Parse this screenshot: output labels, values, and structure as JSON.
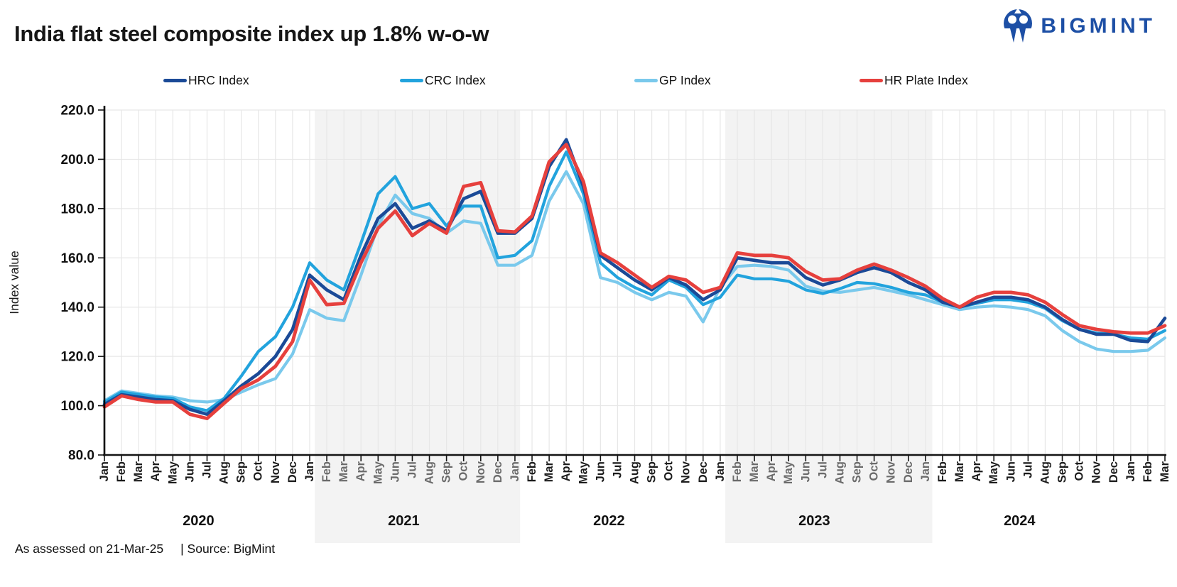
{
  "header": {
    "title": "India flat steel composite index up 1.8% w-o-w"
  },
  "logo": {
    "text": "BIGMINT",
    "color": "#1d4fa5",
    "icon": "bigmint-owl-icon"
  },
  "legend": [
    {
      "label": "HRC Index",
      "color": "#1b4a97"
    },
    {
      "label": "CRC Index",
      "color": "#22a3dd"
    },
    {
      "label": "GP Index",
      "color": "#7ac9ec"
    },
    {
      "label": "HR Plate Index",
      "color": "#e6403d"
    }
  ],
  "footer": {
    "assessed": "As assessed on 21-Mar-25",
    "source": "| Source: BigMint"
  },
  "chart_data": {
    "type": "line",
    "title": "India flat steel composite index up 1.8% w-o-w",
    "xlabel": "",
    "ylabel": "Index value",
    "ylim": [
      80,
      220
    ],
    "ytick_step": 20,
    "ytick_labels": [
      "80.0",
      "100.0",
      "120.0",
      "140.0",
      "160.0",
      "180.0",
      "200.0",
      "220.0"
    ],
    "grid": true,
    "legend_position": "top",
    "background_bands_month_range": [
      [
        12.3,
        24.3
      ],
      [
        36.3,
        48.4
      ]
    ],
    "band_color": "#f3f3f3",
    "grid_color": "#e7e7e7",
    "x_monthly_labels": [
      "Jan",
      "Feb",
      "Mar",
      "Apr",
      "May",
      "Jun",
      "Jul",
      "Aug",
      "Sep",
      "Oct",
      "Nov",
      "Dec",
      "Jan",
      "Feb",
      "Mar",
      "Apr",
      "May",
      "Jun",
      "Jul",
      "Aug",
      "Sep",
      "Oct",
      "Nov",
      "Dec",
      "Jan",
      "Feb",
      "Mar",
      "Apr",
      "May",
      "Jun",
      "Jul",
      "Aug",
      "Sep",
      "Oct",
      "Nov",
      "Dec",
      "Jan",
      "Feb",
      "Mar",
      "Apr",
      "May",
      "Jun",
      "Jul",
      "Aug",
      "Sep",
      "Oct",
      "Nov",
      "Dec",
      "Jan",
      "Feb",
      "Mar",
      "Apr",
      "May",
      "Jun",
      "Jul",
      "Aug",
      "Sep",
      "Oct",
      "Nov",
      "Dec",
      "Jan",
      "Feb",
      "Mar"
    ],
    "year_labels": [
      {
        "label": "2020",
        "center_month": 5.5
      },
      {
        "label": "2021",
        "center_month": 17.5
      },
      {
        "label": "2022",
        "center_month": 29.5
      },
      {
        "label": "2023",
        "center_month": 41.5
      },
      {
        "label": "2024",
        "center_month": 53.5
      }
    ],
    "series": [
      {
        "name": "HRC Index",
        "color": "#1b4a97",
        "values": [
          100.5,
          104.5,
          103.5,
          102.5,
          102,
          98.5,
          96.5,
          102,
          108,
          113,
          120,
          131,
          153,
          147,
          143,
          161,
          176,
          182,
          172,
          175,
          171,
          184,
          187,
          170,
          170,
          176,
          197,
          208,
          189,
          161,
          156,
          151,
          147,
          152,
          149,
          143,
          147,
          160,
          159,
          158,
          158,
          152,
          149,
          151,
          154,
          156,
          154,
          150,
          147,
          142,
          140,
          142,
          144,
          144,
          143,
          140,
          135,
          131,
          129,
          129,
          126.5,
          126,
          135.5
        ]
      },
      {
        "name": "CRC Index",
        "color": "#22a3dd",
        "values": [
          101.5,
          105.5,
          104.5,
          103.5,
          103,
          99.5,
          98,
          103,
          112,
          122,
          128,
          140,
          158,
          151,
          147,
          166,
          186,
          193,
          180,
          182,
          173,
          181,
          181,
          160,
          161,
          167,
          189,
          203,
          186,
          158,
          152,
          148,
          145,
          151,
          148,
          141,
          144,
          153,
          151.5,
          151.5,
          150.5,
          147,
          145.5,
          147.5,
          150,
          149.5,
          148,
          146,
          145,
          142,
          140,
          141.5,
          143,
          143,
          142,
          139.5,
          134.5,
          131,
          129.5,
          129,
          127.5,
          127,
          130.5
        ]
      },
      {
        "name": "GP Index",
        "color": "#7ac9ec",
        "values": [
          102,
          106,
          105,
          104,
          103.5,
          102,
          101.5,
          102.5,
          105.5,
          108.5,
          111,
          121,
          139,
          135.5,
          134.5,
          153,
          173,
          185.5,
          178,
          176,
          170,
          175,
          174,
          157,
          157,
          161,
          183,
          195,
          182,
          152,
          150,
          146,
          143,
          146,
          144.5,
          134,
          148,
          156.5,
          157,
          156.5,
          155,
          148.5,
          146.5,
          146,
          147,
          148,
          146.5,
          145,
          143,
          141,
          139,
          140,
          140.5,
          140,
          139,
          136.5,
          130.5,
          126,
          123,
          122,
          122,
          122.5,
          127.5
        ]
      },
      {
        "name": "HR Plate Index",
        "color": "#e6403d",
        "values": [
          99.5,
          104,
          102.5,
          101.5,
          101.5,
          96.5,
          94.8,
          101,
          107,
          110.5,
          116,
          126,
          151,
          141,
          141.5,
          158,
          172,
          179,
          169,
          174,
          170,
          189,
          190.5,
          171,
          170.5,
          177,
          199,
          206,
          191,
          162,
          158,
          153,
          148,
          152.5,
          151,
          146,
          148,
          162,
          161,
          161,
          160,
          154.5,
          151,
          151.5,
          155,
          157.5,
          155,
          152,
          148.5,
          143.5,
          140,
          144,
          146,
          146,
          145,
          142,
          137,
          132.5,
          131,
          130,
          129.5,
          129.5,
          132.5
        ]
      }
    ]
  }
}
